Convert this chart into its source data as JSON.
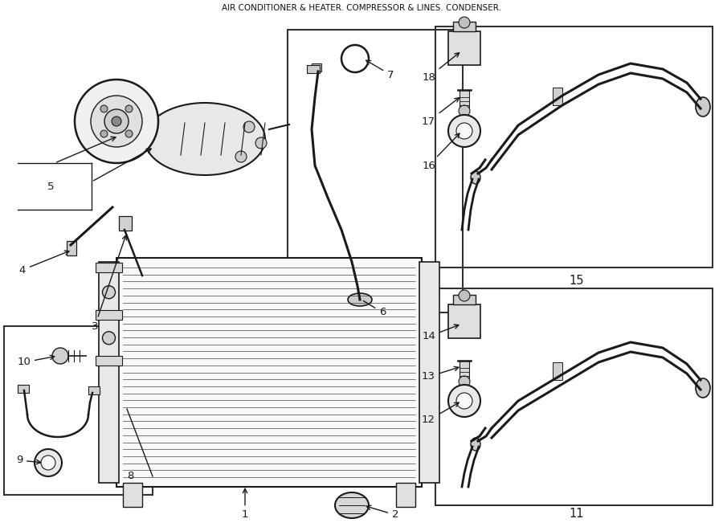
{
  "title": "AIR CONDITIONER & HEATER. COMPRESSOR & LINES. CONDENSER.",
  "bg_color": "#ffffff",
  "line_color": "#1a1a1a",
  "box_border_color": "#333333",
  "fig_width": 9.0,
  "fig_height": 6.61,
  "dpi": 100
}
